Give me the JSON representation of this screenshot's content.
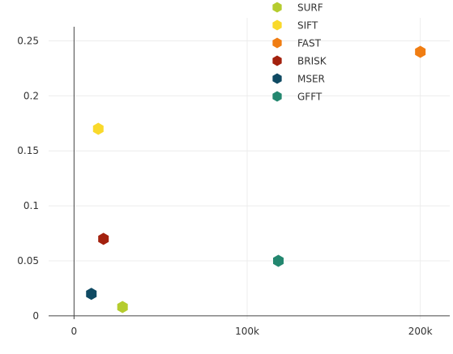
{
  "chart_data": {
    "type": "scatter",
    "title": "",
    "xlabel": "",
    "ylabel": "",
    "xlim": [
      -10000,
      217000
    ],
    "ylim": [
      -0.003,
      0.265
    ],
    "xticks": [
      0,
      100000,
      200000
    ],
    "xtick_labels": [
      "0",
      "100k",
      "200k"
    ],
    "yticks": [
      0,
      0.05,
      0.1,
      0.15,
      0.2,
      0.25
    ],
    "ytick_labels": [
      "0",
      "0.05",
      "0.1",
      "0.15",
      "0.2",
      "0.25"
    ],
    "grid": true,
    "legend_position": "top-center",
    "series": [
      {
        "name": "SURF",
        "color": "#b5cc2e",
        "points": [
          {
            "x": 28000,
            "y": 0.008
          }
        ]
      },
      {
        "name": "SIFT",
        "color": "#f9d92b",
        "points": [
          {
            "x": 14000,
            "y": 0.17
          }
        ]
      },
      {
        "name": "FAST",
        "color": "#f07d12",
        "points": [
          {
            "x": 200000,
            "y": 0.24
          }
        ]
      },
      {
        "name": "BRISK",
        "color": "#a3210e",
        "points": [
          {
            "x": 17000,
            "y": 0.07
          }
        ]
      },
      {
        "name": "MSER",
        "color": "#0f4a63",
        "points": [
          {
            "x": 10000,
            "y": 0.02
          }
        ]
      },
      {
        "name": "GFFT",
        "color": "#23876f",
        "points": [
          {
            "x": 118000,
            "y": 0.05
          }
        ]
      }
    ]
  }
}
